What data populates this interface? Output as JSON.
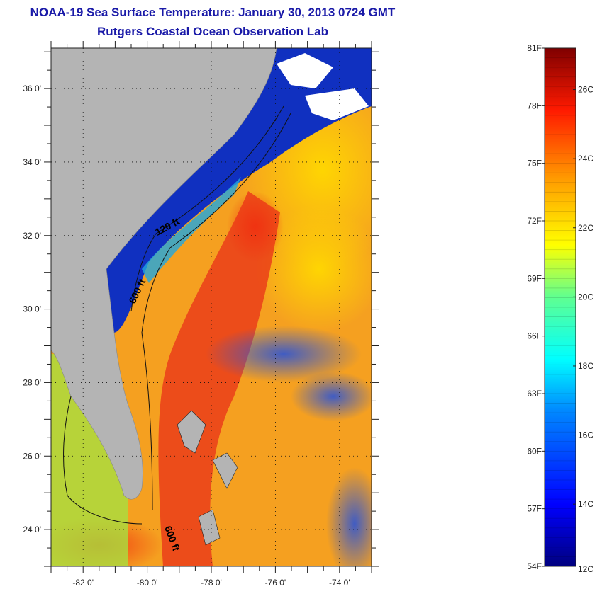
{
  "title": "NOAA-19 Sea Surface Temperature:  January 30, 2013 0724 GMT",
  "subtitle": "Rutgers Coastal Ocean Observation Lab",
  "map": {
    "lat_labels": [
      "36 0'",
      "34 0'",
      "32 0'",
      "30 0'",
      "28 0'",
      "26 0'",
      "24 0'"
    ],
    "lat_values": [
      36,
      34,
      32,
      30,
      28,
      26,
      24
    ],
    "lon_labels": [
      "-82 0'",
      "-80 0'",
      "-78 0'",
      "-76 0'",
      "-74 0'"
    ],
    "lon_values": [
      -82,
      -80,
      -78,
      -76,
      -74
    ],
    "lat_range": [
      23,
      37.1
    ],
    "lon_range": [
      -83,
      -73
    ],
    "contour_labels": [
      "120 ft",
      "600 ft",
      "600 ft"
    ]
  },
  "colorbar": {
    "fahrenheit": [
      "81F",
      "78F",
      "75F",
      "72F",
      "69F",
      "66F",
      "63F",
      "60F",
      "57F",
      "54F"
    ],
    "celsius": [
      "26C",
      "24C",
      "22C",
      "20C",
      "18C",
      "16C",
      "14C",
      "12C"
    ],
    "range_f": [
      54,
      81
    ],
    "range_c": [
      12.2,
      27.2
    ]
  },
  "colors": {
    "land": "#b4b4b4",
    "title": "#1a1aa8",
    "cold": "#0a1aa0",
    "warm": "#d82010"
  }
}
